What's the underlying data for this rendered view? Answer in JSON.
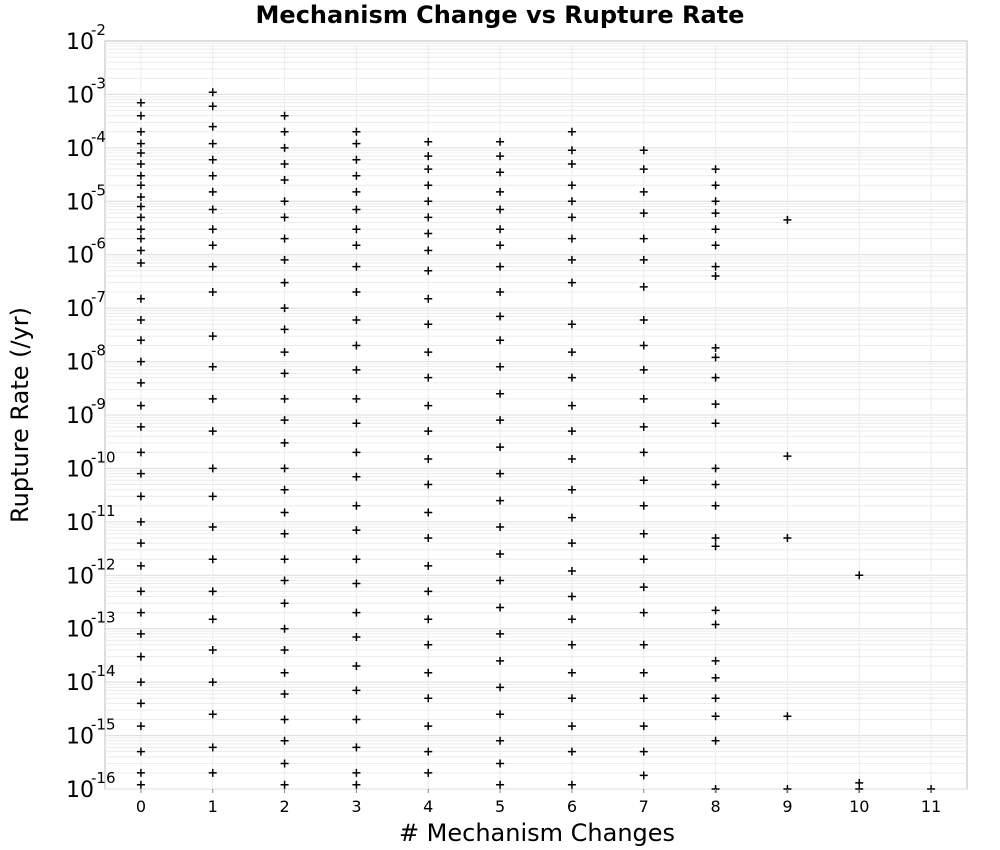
{
  "chart_data": {
    "type": "scatter",
    "title": "Mechanism Change vs Rupture Rate",
    "xlabel": "# Mechanism Changes",
    "ylabel": "Rupture Rate (/yr)",
    "x_ticks": [
      "0",
      "1",
      "2",
      "3",
      "4",
      "5",
      "6",
      "7",
      "8",
      "9",
      "10",
      "11"
    ],
    "xlim": [
      -0.5,
      11.5
    ],
    "y_scale": "log",
    "ylim": [
      1e-16,
      0.01
    ],
    "y_ticks": [
      {
        "base": "10",
        "exp": "-2"
      },
      {
        "base": "10",
        "exp": "-3"
      },
      {
        "base": "10",
        "exp": "-4"
      },
      {
        "base": "10",
        "exp": "-5"
      },
      {
        "base": "10",
        "exp": "-6"
      },
      {
        "base": "10",
        "exp": "-7"
      },
      {
        "base": "10",
        "exp": "-8"
      },
      {
        "base": "10",
        "exp": "-9"
      },
      {
        "base": "10",
        "exp": "-10"
      },
      {
        "base": "10",
        "exp": "-11"
      },
      {
        "base": "10",
        "exp": "-12"
      },
      {
        "base": "10",
        "exp": "-13"
      },
      {
        "base": "10",
        "exp": "-14"
      },
      {
        "base": "10",
        "exp": "-15"
      },
      {
        "base": "10",
        "exp": "-16"
      }
    ],
    "grid": true,
    "marker": "plus",
    "marker_color": "#000000",
    "points": [
      [
        0,
        0.0007
      ],
      [
        0,
        0.0004
      ],
      [
        0,
        0.0002
      ],
      [
        0,
        0.00012
      ],
      [
        0,
        8e-05
      ],
      [
        0,
        5e-05
      ],
      [
        0,
        3e-05
      ],
      [
        0,
        2e-05
      ],
      [
        0,
        1.2e-05
      ],
      [
        0,
        8e-06
      ],
      [
        0,
        5e-06
      ],
      [
        0,
        3e-06
      ],
      [
        0,
        2e-06
      ],
      [
        0,
        1.2e-06
      ],
      [
        0,
        7e-07
      ],
      [
        0,
        1.5e-07
      ],
      [
        0,
        6e-08
      ],
      [
        0,
        2.5e-08
      ],
      [
        0,
        1e-08
      ],
      [
        0,
        4e-09
      ],
      [
        0,
        1.5e-09
      ],
      [
        0,
        6e-10
      ],
      [
        0,
        2e-10
      ],
      [
        0,
        8e-11
      ],
      [
        0,
        3e-11
      ],
      [
        0,
        1e-11
      ],
      [
        0,
        4e-12
      ],
      [
        0,
        1.5e-12
      ],
      [
        0,
        5e-13
      ],
      [
        0,
        2e-13
      ],
      [
        0,
        8e-14
      ],
      [
        0,
        3e-14
      ],
      [
        0,
        1e-14
      ],
      [
        0,
        4e-15
      ],
      [
        0,
        1.5e-15
      ],
      [
        0,
        5e-16
      ],
      [
        0,
        2e-16
      ],
      [
        0,
        1.2e-16
      ],
      [
        1,
        0.0011
      ],
      [
        1,
        0.0006
      ],
      [
        1,
        0.00025
      ],
      [
        1,
        0.00012
      ],
      [
        1,
        6e-05
      ],
      [
        1,
        3e-05
      ],
      [
        1,
        1.5e-05
      ],
      [
        1,
        7e-06
      ],
      [
        1,
        3e-06
      ],
      [
        1,
        1.5e-06
      ],
      [
        1,
        6e-07
      ],
      [
        1,
        2e-07
      ],
      [
        1,
        3e-08
      ],
      [
        1,
        8e-09
      ],
      [
        1,
        2e-09
      ],
      [
        1,
        5e-10
      ],
      [
        1,
        1e-10
      ],
      [
        1,
        3e-11
      ],
      [
        1,
        8e-12
      ],
      [
        1,
        2e-12
      ],
      [
        1,
        5e-13
      ],
      [
        1,
        1.5e-13
      ],
      [
        1,
        4e-14
      ],
      [
        1,
        1e-14
      ],
      [
        1,
        2.5e-15
      ],
      [
        1,
        6e-16
      ],
      [
        1,
        2e-16
      ],
      [
        2,
        0.0004
      ],
      [
        2,
        0.0002
      ],
      [
        2,
        0.0001
      ],
      [
        2,
        5e-05
      ],
      [
        2,
        2.5e-05
      ],
      [
        2,
        1e-05
      ],
      [
        2,
        5e-06
      ],
      [
        2,
        2e-06
      ],
      [
        2,
        8e-07
      ],
      [
        2,
        3e-07
      ],
      [
        2,
        1e-07
      ],
      [
        2,
        4e-08
      ],
      [
        2,
        1.5e-08
      ],
      [
        2,
        6e-09
      ],
      [
        2,
        2e-09
      ],
      [
        2,
        8e-10
      ],
      [
        2,
        3e-10
      ],
      [
        2,
        1e-10
      ],
      [
        2,
        4e-11
      ],
      [
        2,
        1.5e-11
      ],
      [
        2,
        6e-12
      ],
      [
        2,
        2e-12
      ],
      [
        2,
        8e-13
      ],
      [
        2,
        3e-13
      ],
      [
        2,
        1e-13
      ],
      [
        2,
        4e-14
      ],
      [
        2,
        1.5e-14
      ],
      [
        2,
        6e-15
      ],
      [
        2,
        2e-15
      ],
      [
        2,
        8e-16
      ],
      [
        2,
        3e-16
      ],
      [
        2,
        1.2e-16
      ],
      [
        3,
        0.0002
      ],
      [
        3,
        0.00012
      ],
      [
        3,
        6e-05
      ],
      [
        3,
        3e-05
      ],
      [
        3,
        1.5e-05
      ],
      [
        3,
        7e-06
      ],
      [
        3,
        3e-06
      ],
      [
        3,
        1.5e-06
      ],
      [
        3,
        6e-07
      ],
      [
        3,
        2e-07
      ],
      [
        3,
        6e-08
      ],
      [
        3,
        2e-08
      ],
      [
        3,
        7e-09
      ],
      [
        3,
        2e-09
      ],
      [
        3,
        7e-10
      ],
      [
        3,
        2e-10
      ],
      [
        3,
        7e-11
      ],
      [
        3,
        2e-11
      ],
      [
        3,
        7e-12
      ],
      [
        3,
        2e-12
      ],
      [
        3,
        7e-13
      ],
      [
        3,
        2e-13
      ],
      [
        3,
        7e-14
      ],
      [
        3,
        2e-14
      ],
      [
        3,
        7e-15
      ],
      [
        3,
        2e-15
      ],
      [
        3,
        6e-16
      ],
      [
        3,
        2e-16
      ],
      [
        3,
        1.2e-16
      ],
      [
        4,
        0.00013
      ],
      [
        4,
        7e-05
      ],
      [
        4,
        4e-05
      ],
      [
        4,
        2e-05
      ],
      [
        4,
        1e-05
      ],
      [
        4,
        5e-06
      ],
      [
        4,
        2.5e-06
      ],
      [
        4,
        1.2e-06
      ],
      [
        4,
        5e-07
      ],
      [
        4,
        1.5e-07
      ],
      [
        4,
        5e-08
      ],
      [
        4,
        1.5e-08
      ],
      [
        4,
        5e-09
      ],
      [
        4,
        1.5e-09
      ],
      [
        4,
        5e-10
      ],
      [
        4,
        1.5e-10
      ],
      [
        4,
        5e-11
      ],
      [
        4,
        1.5e-11
      ],
      [
        4,
        5e-12
      ],
      [
        4,
        1.5e-12
      ],
      [
        4,
        5e-13
      ],
      [
        4,
        1.5e-13
      ],
      [
        4,
        5e-14
      ],
      [
        4,
        1.5e-14
      ],
      [
        4,
        5e-15
      ],
      [
        4,
        1.5e-15
      ],
      [
        4,
        5e-16
      ],
      [
        4,
        2e-16
      ],
      [
        5,
        0.00013
      ],
      [
        5,
        7e-05
      ],
      [
        5,
        3.5e-05
      ],
      [
        5,
        1.5e-05
      ],
      [
        5,
        7e-06
      ],
      [
        5,
        3e-06
      ],
      [
        5,
        1.5e-06
      ],
      [
        5,
        6e-07
      ],
      [
        5,
        2e-07
      ],
      [
        5,
        7e-08
      ],
      [
        5,
        2.5e-08
      ],
      [
        5,
        8e-09
      ],
      [
        5,
        2.5e-09
      ],
      [
        5,
        8e-10
      ],
      [
        5,
        2.5e-10
      ],
      [
        5,
        8e-11
      ],
      [
        5,
        2.5e-11
      ],
      [
        5,
        8e-12
      ],
      [
        5,
        2.5e-12
      ],
      [
        5,
        8e-13
      ],
      [
        5,
        2.5e-13
      ],
      [
        5,
        8e-14
      ],
      [
        5,
        2.5e-14
      ],
      [
        5,
        8e-15
      ],
      [
        5,
        2.5e-15
      ],
      [
        5,
        8e-16
      ],
      [
        5,
        3e-16
      ],
      [
        5,
        1.2e-16
      ],
      [
        6,
        0.0002
      ],
      [
        6,
        9e-05
      ],
      [
        6,
        5e-05
      ],
      [
        6,
        2e-05
      ],
      [
        6,
        1e-05
      ],
      [
        6,
        5e-06
      ],
      [
        6,
        2e-06
      ],
      [
        6,
        8e-07
      ],
      [
        6,
        3e-07
      ],
      [
        6,
        5e-08
      ],
      [
        6,
        1.5e-08
      ],
      [
        6,
        5e-09
      ],
      [
        6,
        1.5e-09
      ],
      [
        6,
        5e-10
      ],
      [
        6,
        1.5e-10
      ],
      [
        6,
        4e-11
      ],
      [
        6,
        1.2e-11
      ],
      [
        6,
        4e-12
      ],
      [
        6,
        1.2e-12
      ],
      [
        6,
        4e-13
      ],
      [
        6,
        1.5e-13
      ],
      [
        6,
        5e-14
      ],
      [
        6,
        1.5e-14
      ],
      [
        6,
        5e-15
      ],
      [
        6,
        1.5e-15
      ],
      [
        6,
        5e-16
      ],
      [
        6,
        1.2e-16
      ],
      [
        7,
        9e-05
      ],
      [
        7,
        4e-05
      ],
      [
        7,
        1.5e-05
      ],
      [
        7,
        6e-06
      ],
      [
        7,
        2e-06
      ],
      [
        7,
        8e-07
      ],
      [
        7,
        2.5e-07
      ],
      [
        7,
        6e-08
      ],
      [
        7,
        2e-08
      ],
      [
        7,
        7e-09
      ],
      [
        7,
        2e-09
      ],
      [
        7,
        6e-10
      ],
      [
        7,
        2e-10
      ],
      [
        7,
        6e-11
      ],
      [
        7,
        2e-11
      ],
      [
        7,
        6e-12
      ],
      [
        7,
        2e-12
      ],
      [
        7,
        6e-13
      ],
      [
        7,
        2e-13
      ],
      [
        7,
        5e-14
      ],
      [
        7,
        1.5e-14
      ],
      [
        7,
        5e-15
      ],
      [
        7,
        1.5e-15
      ],
      [
        7,
        5e-16
      ],
      [
        7,
        1.8e-16
      ],
      [
        8,
        4e-05
      ],
      [
        8,
        2e-05
      ],
      [
        8,
        1e-05
      ],
      [
        8,
        6e-06
      ],
      [
        8,
        3e-06
      ],
      [
        8,
        1.5e-06
      ],
      [
        8,
        6e-07
      ],
      [
        8,
        4e-07
      ],
      [
        8,
        1.8e-08
      ],
      [
        8,
        1.2e-08
      ],
      [
        8,
        5e-09
      ],
      [
        8,
        1.6e-09
      ],
      [
        8,
        7e-10
      ],
      [
        8,
        1e-10
      ],
      [
        8,
        5e-11
      ],
      [
        8,
        2e-11
      ],
      [
        8,
        5e-12
      ],
      [
        8,
        3.5e-12
      ],
      [
        8,
        2.2e-13
      ],
      [
        8,
        1.2e-13
      ],
      [
        8,
        2.5e-14
      ],
      [
        8,
        1.2e-14
      ],
      [
        8,
        5e-15
      ],
      [
        8,
        2.3e-15
      ],
      [
        8,
        8e-16
      ],
      [
        8,
        1e-16
      ],
      [
        9,
        4.5e-06
      ],
      [
        9,
        1.7e-10
      ],
      [
        9,
        5e-12
      ],
      [
        9,
        2.3e-15
      ],
      [
        9,
        1e-16
      ],
      [
        10,
        1e-12
      ],
      [
        10,
        1.3e-16
      ],
      [
        10,
        1e-16
      ],
      [
        11,
        1e-16
      ]
    ]
  }
}
